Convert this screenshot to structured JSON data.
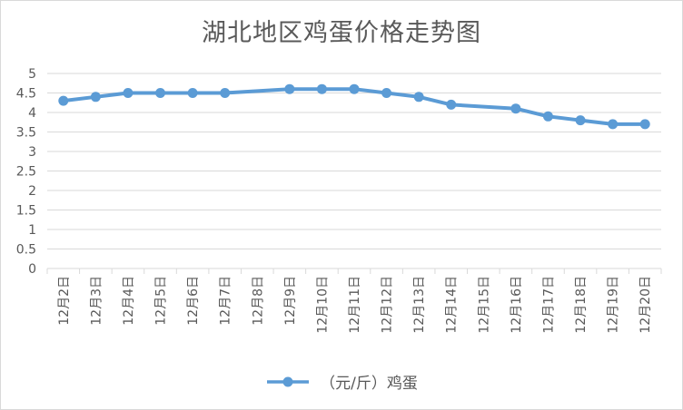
{
  "chart_data": {
    "type": "line",
    "title": "湖北地区鸡蛋价格走势图",
    "categories": [
      "12月2日",
      "12月3日",
      "12月4日",
      "12月5日",
      "12月6日",
      "12月7日",
      "12月8日",
      "12月9日",
      "12月10日",
      "12月11日",
      "12月12日",
      "12月13日",
      "12月14日",
      "12月15日",
      "12月16日",
      "12月17日",
      "12月18日",
      "12月19日",
      "12月20日"
    ],
    "series": [
      {
        "name": "（元/斤）鸡蛋",
        "values": [
          4.3,
          4.4,
          4.5,
          4.5,
          4.5,
          4.5,
          null,
          4.6,
          4.6,
          4.6,
          4.5,
          4.4,
          4.2,
          null,
          4.1,
          3.9,
          3.8,
          3.7,
          3.7
        ]
      }
    ],
    "ylim": [
      0,
      5
    ],
    "yticks": [
      "0",
      "0.5",
      "1",
      "1.5",
      "2",
      "2.5",
      "3",
      "3.5",
      "4",
      "4.5",
      "5"
    ],
    "xlabel": "",
    "ylabel": "",
    "grid": true,
    "legend": "bottom",
    "color": "#5b9bd5"
  }
}
